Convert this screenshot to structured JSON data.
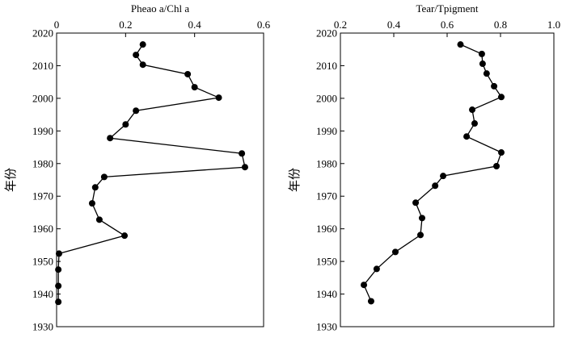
{
  "chart_data": [
    {
      "type": "line",
      "xlabel": "Pheao a/Chl a",
      "ylabel": "年份",
      "x": [
        0.25,
        0.23,
        0.25,
        0.38,
        0.4,
        0.47,
        0.23,
        0.2,
        0.155,
        0.537,
        0.546,
        0.138,
        0.112,
        0.103,
        0.124,
        0.197,
        0.007,
        0.005,
        0.005,
        0.005
      ],
      "y": [
        2016.5,
        2013.3,
        2010.3,
        2007.4,
        2003.4,
        2000.2,
        1996.2,
        1992,
        1987.8,
        1983.1,
        1978.9,
        1975.9,
        1972.7,
        1967.8,
        1962.8,
        1957.9,
        1952.4,
        1947.5,
        1942.5,
        1937.6
      ],
      "color": "#000000",
      "xlim": [
        0,
        0.6
      ],
      "xticks": [
        0,
        0.2,
        0.4,
        0.6
      ],
      "ylim": [
        1930,
        2020
      ],
      "yticks": [
        1930,
        1940,
        1950,
        1960,
        1970,
        1980,
        1990,
        2000,
        2010,
        2020
      ]
    },
    {
      "type": "line",
      "xlabel": "Tear/Tpigment",
      "ylabel": "年份",
      "x": [
        0.65,
        0.73,
        0.733,
        0.748,
        0.776,
        0.803,
        0.694,
        0.703,
        0.673,
        0.803,
        0.785,
        0.585,
        0.555,
        0.482,
        0.506,
        0.5,
        0.406,
        0.336,
        0.288,
        0.315
      ],
      "y": [
        2016.5,
        2013.6,
        2010.6,
        2007.6,
        2003.7,
        2000.4,
        1996.5,
        1992.3,
        1988.3,
        1983.4,
        1979.2,
        1976.2,
        1973.2,
        1968,
        1963.3,
        1958.1,
        1952.9,
        1947.7,
        1942.8,
        1937.8
      ],
      "color": "#000000",
      "xlim": [
        0.2,
        1.0
      ],
      "xticks": [
        0.2,
        0.4,
        0.6,
        0.8,
        {
          "value": 1.0,
          "label": "1.0"
        }
      ],
      "ylim": [
        1930,
        2020
      ],
      "yticks": [
        1930,
        1940,
        1950,
        1960,
        1970,
        1980,
        1990,
        2000,
        2010,
        2020
      ]
    }
  ]
}
